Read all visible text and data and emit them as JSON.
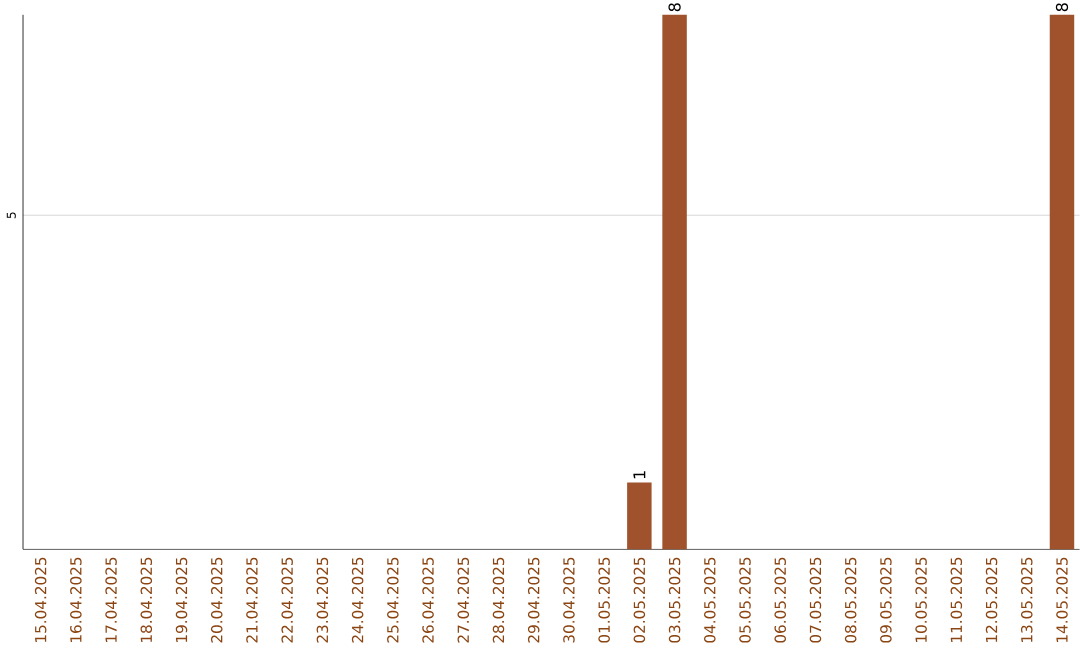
{
  "chart_data": {
    "type": "bar",
    "categories": [
      "15.04.2025",
      "16.04.2025",
      "17.04.2025",
      "18.04.2025",
      "19.04.2025",
      "20.04.2025",
      "21.04.2025",
      "22.04.2025",
      "23.04.2025",
      "24.04.2025",
      "25.04.2025",
      "26.04.2025",
      "27.04.2025",
      "28.04.2025",
      "29.04.2025",
      "30.04.2025",
      "01.05.2025",
      "02.05.2025",
      "03.05.2025",
      "04.05.2025",
      "05.05.2025",
      "06.05.2025",
      "07.05.2025",
      "08.05.2025",
      "09.05.2025",
      "10.05.2025",
      "11.05.2025",
      "12.05.2025",
      "13.05.2025",
      "14.05.2025"
    ],
    "values": [
      null,
      null,
      null,
      null,
      null,
      null,
      null,
      null,
      null,
      null,
      null,
      null,
      null,
      null,
      null,
      null,
      null,
      1,
      8,
      null,
      null,
      null,
      null,
      null,
      null,
      null,
      null,
      null,
      null,
      8
    ],
    "value_labels": [
      null,
      null,
      null,
      null,
      null,
      null,
      null,
      null,
      null,
      null,
      null,
      null,
      null,
      null,
      null,
      null,
      null,
      "1",
      "8",
      null,
      null,
      null,
      null,
      null,
      null,
      null,
      null,
      null,
      null,
      "8"
    ],
    "color": "#a0522d",
    "ylim": [
      0,
      8
    ],
    "yticks": [
      5
    ],
    "grid": "y"
  }
}
